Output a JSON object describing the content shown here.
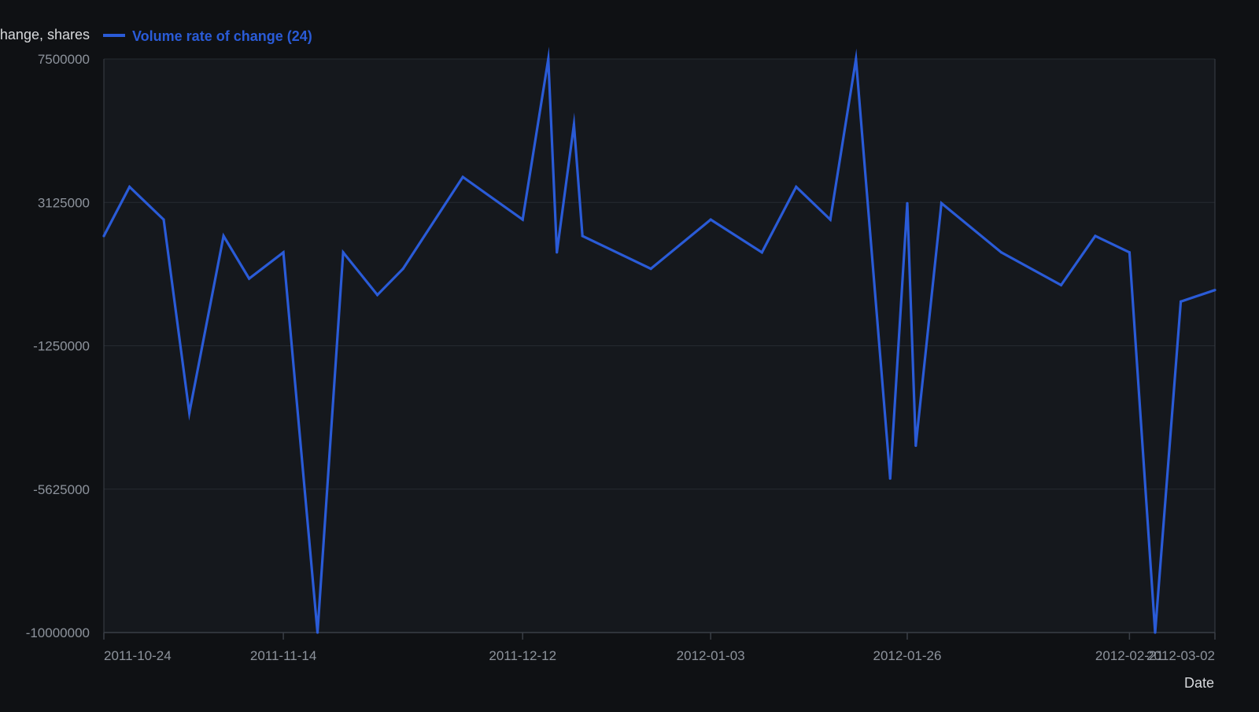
{
  "colors": {
    "background": "#0f1114",
    "plot_background": "#15181d",
    "grid": "#262a31",
    "axis": "#3a3f47",
    "tick_text": "#8d939c",
    "label_text": "#d8dadd",
    "series": "#2a5bd7"
  },
  "chart_data": {
    "type": "line",
    "title": "",
    "xlabel": "Date",
    "ylabel": "Volume rate of change, shares",
    "ylim": [
      -10000000,
      7500000
    ],
    "y_ticks": [
      7500000,
      3125000,
      -1250000,
      -5625000,
      -10000000
    ],
    "y_tick_labels": [
      "7500000",
      "3125000",
      "-1250000",
      "-5625000",
      "-10000000"
    ],
    "xlim": [
      "2011-10-24",
      "2012-03-02"
    ],
    "x_ticks": [
      "2011-10-24",
      "2011-11-14",
      "2011-12-12",
      "2012-01-03",
      "2012-01-26",
      "2012-02-21",
      "2012-03-02"
    ],
    "x_tick_labels": [
      "2011-10-24",
      "2011-11-14",
      "2011-12-12",
      "2012-01-03",
      "2012-01-26",
      "2012-02-21",
      "2012-03-02"
    ],
    "grid": true,
    "legend_position": "top-left",
    "series": [
      {
        "name": "Volume rate of change (24)",
        "x": [
          "2011-10-24",
          "2011-10-27",
          "2011-10-31",
          "2011-11-03",
          "2011-11-07",
          "2011-11-10",
          "2011-11-14",
          "2011-11-18",
          "2011-11-21",
          "2011-11-25",
          "2011-11-28",
          "2011-12-05",
          "2011-12-12",
          "2011-12-15",
          "2011-12-16",
          "2011-12-18",
          "2011-12-19",
          "2011-12-27",
          "2012-01-03",
          "2012-01-09",
          "2012-01-13",
          "2012-01-17",
          "2012-01-20",
          "2012-01-24",
          "2012-01-26",
          "2012-01-27",
          "2012-01-30",
          "2012-02-06",
          "2012-02-13",
          "2012-02-17",
          "2012-02-21",
          "2012-02-24",
          "2012-02-27",
          "2012-03-02"
        ],
        "y": [
          2100000,
          3600000,
          2600000,
          -3300000,
          2100000,
          800000,
          1600000,
          -10000000,
          1600000,
          300000,
          1100000,
          3900000,
          2600000,
          7500000,
          1600000,
          5500000,
          2100000,
          1100000,
          2600000,
          1600000,
          3600000,
          2600000,
          7500000,
          -5300000,
          3100000,
          -4300000,
          3100000,
          1600000,
          600000,
          2100000,
          1600000,
          -10000000,
          100000,
          450000
        ]
      }
    ]
  }
}
